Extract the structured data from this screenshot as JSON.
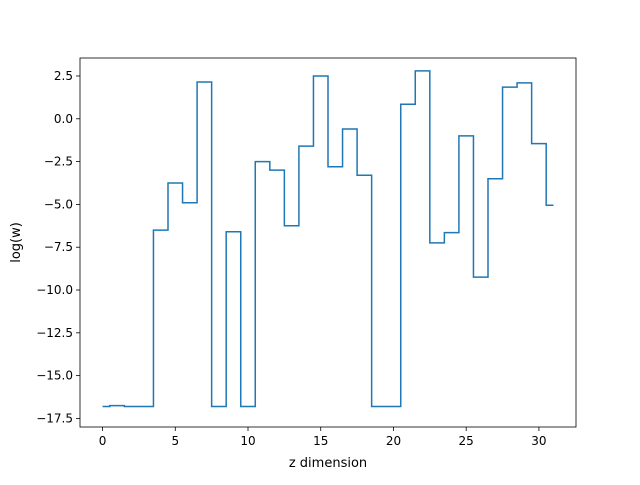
{
  "chart_data": {
    "type": "line",
    "drawstyle": "steps-mid",
    "title": "",
    "xlabel": "z dimension",
    "ylabel": "log(w)",
    "xlim": [
      -1.55,
      32.55
    ],
    "ylim": [
      -18.0,
      3.55
    ],
    "xticks": [
      0,
      5,
      10,
      15,
      20,
      25,
      30
    ],
    "xtick_labels": [
      "0",
      "5",
      "10",
      "15",
      "20",
      "25",
      "30"
    ],
    "yticks": [
      -17.5,
      -15.0,
      -12.5,
      -10.0,
      -7.5,
      -5.0,
      -2.5,
      0.0,
      2.5
    ],
    "ytick_labels": [
      "−17.5",
      "−15.0",
      "−12.5",
      "−10.0",
      "−7.5",
      "−5.0",
      "−2.5",
      "0.0",
      "2.5"
    ],
    "grid": false,
    "legend": "none",
    "color": "#1f77b4",
    "series": [
      {
        "x": [
          0,
          1,
          2,
          3,
          4,
          5,
          6,
          7,
          8,
          9,
          10,
          11,
          12,
          13,
          14,
          15,
          16,
          17,
          18,
          19,
          20,
          21,
          22,
          23,
          24,
          25,
          26,
          27,
          28,
          29,
          30,
          31
        ],
        "y": [
          -16.8,
          -16.75,
          -16.8,
          -16.8,
          -6.5,
          -3.75,
          -4.9,
          2.15,
          -16.8,
          -6.6,
          -16.8,
          -2.5,
          -3.0,
          -6.25,
          -1.6,
          2.5,
          -2.8,
          -0.6,
          -3.3,
          -16.8,
          -16.8,
          0.85,
          2.8,
          -7.25,
          -6.65,
          -1.0,
          -9.25,
          -3.5,
          1.85,
          2.1,
          -1.45,
          -5.05
        ]
      }
    ]
  }
}
